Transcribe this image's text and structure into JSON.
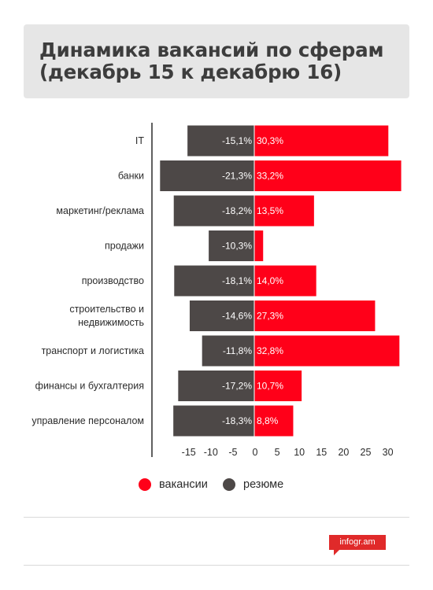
{
  "header": {
    "title_line1": "Динамика вакансий по сферам",
    "title_line2": "(декабрь 15 к декабрю 16)"
  },
  "chart_data": {
    "type": "bar",
    "orientation": "horizontal",
    "categories": [
      "IT",
      "банки",
      "маркетинг/реклама",
      "продажи",
      "производство",
      "строительство и недвижимость",
      "транспорт и логистика",
      "финансы и бухгалтерия",
      "управление персоналом"
    ],
    "category_lines": [
      [
        "IT"
      ],
      [
        "банки"
      ],
      [
        "маркетинг/реклама"
      ],
      [
        "продажи"
      ],
      [
        "производство"
      ],
      [
        "строительство и",
        "недвижимость"
      ],
      [
        "транспорт и логистика"
      ],
      [
        "финансы и бухгалтерия"
      ],
      [
        "управление персоналом"
      ]
    ],
    "series": [
      {
        "name": "резюме",
        "color": "#4d4847",
        "values": [
          -15.1,
          -21.3,
          -18.2,
          -10.3,
          -18.1,
          -14.6,
          -11.8,
          -17.2,
          -18.3
        ],
        "labels": [
          "-15,1%",
          "-21,3%",
          "-18,2%",
          "-10,3%",
          "-18,1%",
          "-14,6%",
          "-11,8%",
          "-17,2%",
          "-18,3%"
        ]
      },
      {
        "name": "вакансии",
        "color": "#ff0019",
        "values": [
          30.3,
          33.2,
          13.5,
          2.0,
          14.0,
          27.3,
          32.8,
          10.7,
          8.8
        ],
        "labels": [
          "30,3%",
          "33,2%",
          "13,5%",
          "",
          "14,0%",
          "27,3%",
          "32,8%",
          "10,7%",
          "8,8%"
        ]
      }
    ],
    "x_ticks": [
      -15,
      -10,
      -5,
      0,
      5,
      10,
      15,
      20,
      25,
      30
    ],
    "xlim": [
      -23,
      35
    ],
    "legend_position": "bottom"
  },
  "legend": [
    {
      "label": "вакансии",
      "color": "#ff0019"
    },
    {
      "label": "резюме",
      "color": "#4d4847"
    }
  ],
  "footer": {
    "logo_text": "infogr.am"
  }
}
